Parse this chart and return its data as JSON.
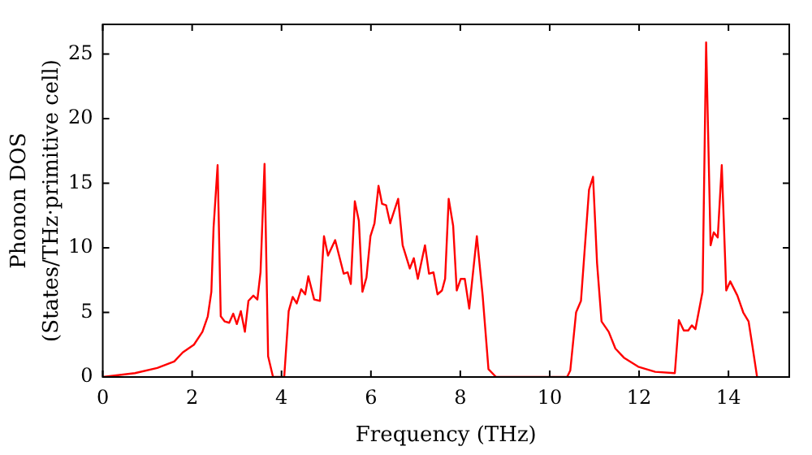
{
  "chart_data": {
    "type": "line",
    "xlabel": "Frequency (THz)",
    "ylabel": "Phonon DOS\n(States/THz·primitive cell)",
    "xlim": [
      0,
      15.36
    ],
    "ylim": [
      0,
      27.3
    ],
    "xticks": [
      0,
      2,
      4,
      6,
      8,
      10,
      12,
      14
    ],
    "yticks": [
      0,
      5,
      10,
      15,
      20,
      25
    ],
    "grid": false,
    "legend": false,
    "marker": "none",
    "line_style": "solid",
    "series": [
      {
        "color": "#ff0000",
        "x": [
          0,
          0.72,
          1.22,
          1.6,
          1.79,
          2.04,
          2.23,
          2.35,
          2.43,
          2.48,
          2.57,
          2.64,
          2.73,
          2.83,
          2.92,
          3.0,
          3.09,
          3.18,
          3.26,
          3.37,
          3.46,
          3.53,
          3.62,
          3.7,
          3.81,
          4.06,
          4.16,
          4.25,
          4.34,
          4.44,
          4.53,
          4.6,
          4.73,
          4.86,
          4.95,
          5.04,
          5.2,
          5.39,
          5.48,
          5.55,
          5.64,
          5.73,
          5.81,
          5.9,
          5.99,
          6.08,
          6.17,
          6.25,
          6.34,
          6.43,
          6.61,
          6.71,
          6.87,
          6.96,
          7.05,
          7.21,
          7.3,
          7.4,
          7.49,
          7.59,
          7.66,
          7.74,
          7.84,
          7.92,
          8.01,
          8.1,
          8.2,
          8.37,
          8.5,
          8.63,
          8.8,
          10.39,
          10.46,
          10.59,
          10.7,
          10.88,
          10.97,
          11.06,
          11.16,
          11.32,
          11.47,
          11.66,
          11.98,
          12.36,
          12.8,
          12.89,
          13.0,
          13.1,
          13.18,
          13.26,
          13.42,
          13.5,
          13.6,
          13.67,
          13.76,
          13.85,
          13.95,
          14.04,
          14.2,
          14.33,
          14.45,
          14.54,
          14.64
        ],
        "values": [
          0,
          0.3,
          0.7,
          1.2,
          1.9,
          2.5,
          3.5,
          4.7,
          6.6,
          11.6,
          16.4,
          4.7,
          4.3,
          4.2,
          4.9,
          4.1,
          5.1,
          3.5,
          5.9,
          6.3,
          6.0,
          8.1,
          16.5,
          1.6,
          0,
          0,
          5.1,
          6.2,
          5.7,
          6.8,
          6.4,
          7.8,
          6.0,
          5.9,
          10.9,
          9.4,
          10.6,
          8.0,
          8.1,
          7.2,
          13.6,
          12.1,
          6.6,
          7.7,
          10.9,
          11.9,
          14.8,
          13.4,
          13.3,
          11.9,
          13.8,
          10.2,
          8.4,
          9.2,
          7.6,
          10.2,
          8.0,
          8.1,
          6.4,
          6.7,
          7.6,
          13.8,
          11.7,
          6.7,
          7.6,
          7.6,
          5.3,
          10.9,
          6.3,
          0.6,
          0,
          0,
          0.5,
          5.0,
          5.9,
          14.5,
          15.5,
          8.8,
          4.3,
          3.5,
          2.2,
          1.5,
          0.8,
          0.4,
          0.3,
          4.4,
          3.6,
          3.6,
          4.0,
          3.7,
          6.6,
          25.9,
          10.2,
          11.2,
          10.8,
          16.4,
          6.7,
          7.4,
          6.3,
          5.0,
          4.3,
          2.3,
          0
        ]
      }
    ]
  }
}
